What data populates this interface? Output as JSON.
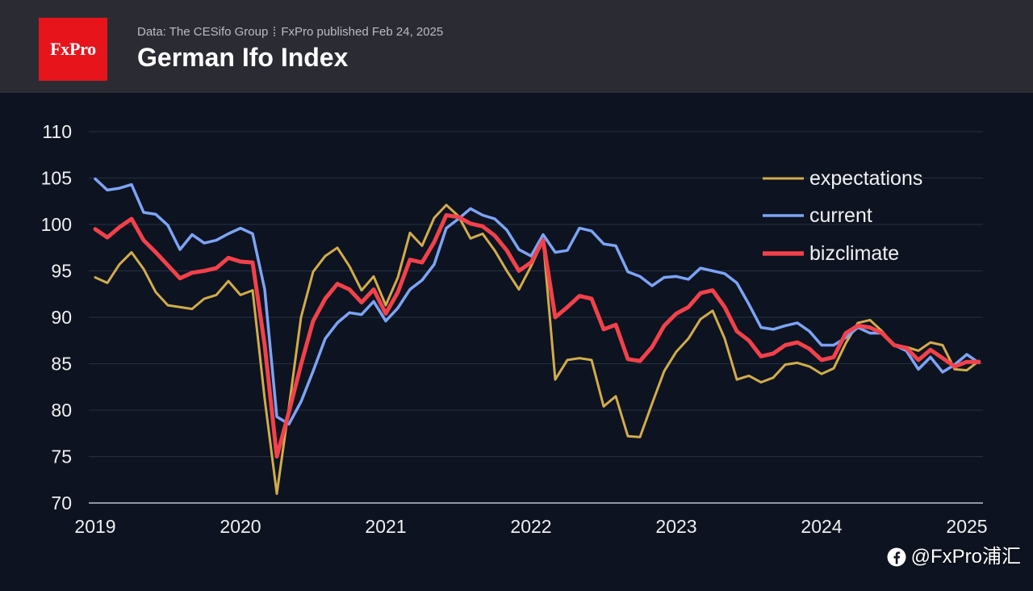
{
  "header": {
    "logo_text": "FxPro",
    "source": "Data: The CESifo Group",
    "published": "FxPro published Feb 24, 2025"
  },
  "colors": {
    "brand": "#e8141c",
    "header_background": "#2b2c33",
    "chart_background": "#0d1320"
  },
  "watermark": {
    "icon": "facebook-icon",
    "text": "@FxPro浦汇"
  },
  "chart_data": {
    "type": "line",
    "title": "German Ifo Index",
    "xlim": [
      "2019-01",
      "2025-02"
    ],
    "ylim": [
      70,
      110
    ],
    "x_ticks": [
      "2019",
      "2020",
      "2021",
      "2022",
      "2023",
      "2024",
      "2025"
    ],
    "y_ticks": [
      70,
      75,
      80,
      85,
      90,
      95,
      100,
      105,
      110
    ],
    "grid": "horizontal",
    "legend": "top-right",
    "x": [
      "2019-01",
      "2019-02",
      "2019-03",
      "2019-04",
      "2019-05",
      "2019-06",
      "2019-07",
      "2019-08",
      "2019-09",
      "2019-10",
      "2019-11",
      "2019-12",
      "2020-01",
      "2020-02",
      "2020-03",
      "2020-04",
      "2020-05",
      "2020-06",
      "2020-07",
      "2020-08",
      "2020-09",
      "2020-10",
      "2020-11",
      "2020-12",
      "2021-01",
      "2021-02",
      "2021-03",
      "2021-04",
      "2021-05",
      "2021-06",
      "2021-07",
      "2021-08",
      "2021-09",
      "2021-10",
      "2021-11",
      "2021-12",
      "2022-01",
      "2022-02",
      "2022-03",
      "2022-04",
      "2022-05",
      "2022-06",
      "2022-07",
      "2022-08",
      "2022-09",
      "2022-10",
      "2022-11",
      "2022-12",
      "2023-01",
      "2023-02",
      "2023-03",
      "2023-04",
      "2023-05",
      "2023-06",
      "2023-07",
      "2023-08",
      "2023-09",
      "2023-10",
      "2023-11",
      "2023-12",
      "2024-01",
      "2024-02",
      "2024-03",
      "2024-04",
      "2024-05",
      "2024-06",
      "2024-07",
      "2024-08",
      "2024-09",
      "2024-10",
      "2024-11",
      "2024-12",
      "2025-01",
      "2025-02"
    ],
    "series": [
      {
        "name": "expectations",
        "color": "#d1ac4b",
        "values": [
          94.3,
          93.7,
          95.7,
          97.0,
          95.2,
          92.7,
          91.3,
          91.1,
          90.9,
          92.0,
          92.4,
          93.9,
          92.4,
          92.9,
          81.2,
          71.0,
          80.3,
          90.0,
          94.9,
          96.6,
          97.5,
          95.5,
          92.9,
          94.4,
          91.3,
          94.3,
          99.1,
          97.7,
          100.7,
          102.1,
          100.9,
          98.5,
          99.0,
          97.2,
          95.0,
          93.0,
          95.5,
          98.3,
          83.3,
          85.4,
          85.6,
          85.4,
          80.4,
          81.5,
          77.2,
          77.1,
          80.7,
          84.2,
          86.3,
          87.7,
          89.8,
          90.7,
          87.7,
          83.3,
          83.7,
          83.0,
          83.5,
          84.9,
          85.1,
          84.7,
          83.9,
          84.5,
          87.2,
          89.4,
          89.7,
          88.5,
          87.0,
          86.8,
          86.4,
          87.3,
          87.0,
          84.4,
          84.3,
          85.3
        ]
      },
      {
        "name": "current",
        "color": "#7ca4f5",
        "values": [
          104.9,
          103.7,
          103.9,
          104.3,
          101.3,
          101.1,
          99.9,
          97.3,
          98.9,
          98.0,
          98.3,
          99.0,
          99.6,
          99.0,
          93.0,
          79.3,
          78.5,
          80.9,
          84.2,
          87.7,
          89.4,
          90.5,
          90.3,
          91.7,
          89.6,
          91.0,
          93.0,
          94.0,
          95.7,
          99.6,
          100.6,
          101.7,
          101.0,
          100.6,
          99.4,
          97.3,
          96.6,
          98.9,
          97.0,
          97.2,
          99.6,
          99.3,
          97.9,
          97.7,
          94.9,
          94.4,
          93.4,
          94.3,
          94.4,
          94.1,
          95.3,
          95.0,
          94.7,
          93.7,
          91.4,
          88.9,
          88.7,
          89.1,
          89.4,
          88.5,
          87.0,
          87.0,
          87.8,
          88.9,
          88.3,
          88.3,
          87.0,
          86.4,
          84.4,
          85.7,
          84.1,
          84.9,
          86.0,
          85.1
        ]
      },
      {
        "name": "bizclimate",
        "color": "#f2414a",
        "values": [
          99.5,
          98.6,
          99.7,
          100.6,
          98.3,
          97.0,
          95.6,
          94.2,
          94.8,
          95.0,
          95.3,
          96.4,
          96.0,
          95.9,
          87.0,
          75.0,
          79.8,
          84.9,
          89.6,
          92.0,
          93.6,
          93.0,
          91.6,
          93.0,
          90.4,
          92.7,
          96.2,
          95.9,
          98.1,
          101.0,
          100.8,
          100.1,
          99.8,
          98.8,
          97.2,
          95.0,
          95.9,
          98.3,
          90.0,
          91.1,
          92.3,
          92.0,
          88.7,
          89.2,
          85.5,
          85.3,
          86.8,
          89.1,
          90.4,
          91.1,
          92.6,
          92.9,
          91.1,
          88.5,
          87.5,
          85.8,
          86.1,
          87.0,
          87.3,
          86.6,
          85.4,
          85.7,
          88.3,
          89.1,
          88.9,
          88.3,
          87.0,
          86.7,
          85.4,
          86.5,
          85.6,
          84.7,
          85.2,
          85.2
        ]
      }
    ]
  }
}
